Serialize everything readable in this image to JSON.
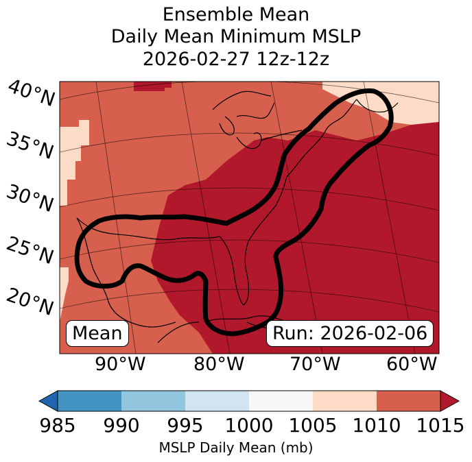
{
  "title": {
    "line1": "Ensemble Mean",
    "line2": "Daily Mean Minimum MSLP",
    "line3": "2026-02-27 12z-12z"
  },
  "map": {
    "lat_labels": [
      "40°N",
      "35°N",
      "30°N",
      "25°N",
      "20°N"
    ],
    "lon_labels": [
      "90°W",
      "80°W",
      "70°W",
      "60°W"
    ],
    "mean_label": "Mean",
    "run_label": "Run: 2026-02-06",
    "field_colors": {
      "1005-1010": "#fcdbc7",
      "1010-1015": "#d6604d",
      "above-1015": "#b2182b"
    }
  },
  "colorbar": {
    "label": "MSLP Daily Mean (mb)",
    "ticks": [
      "985",
      "990",
      "995",
      "1000",
      "1005",
      "1010",
      "1015"
    ],
    "colors": [
      "#2166ac",
      "#4393c3",
      "#92c5de",
      "#d1e5f0",
      "#f7f7f7",
      "#fddbc7",
      "#d6604d",
      "#b2182b"
    ]
  }
}
